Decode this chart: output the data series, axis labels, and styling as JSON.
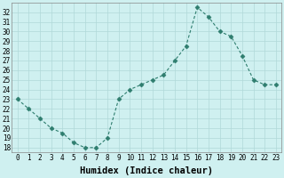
{
  "x": [
    0,
    1,
    2,
    3,
    4,
    5,
    6,
    7,
    8,
    9,
    10,
    11,
    12,
    13,
    14,
    15,
    16,
    17,
    18,
    19,
    20,
    21,
    22,
    23
  ],
  "y": [
    23.0,
    22.0,
    21.0,
    20.0,
    19.5,
    18.5,
    18.0,
    18.0,
    19.0,
    23.0,
    24.0,
    24.5,
    25.0,
    25.5,
    27.0,
    28.5,
    32.5,
    31.5,
    30.0,
    29.5,
    27.5,
    25.0,
    24.5,
    24.5
  ],
  "xlabel": "Humidex (Indice chaleur)",
  "ylim": [
    17.5,
    33.0
  ],
  "xlim": [
    -0.5,
    23.5
  ],
  "line_color": "#2e7d6e",
  "marker": "D",
  "marker_size": 2.5,
  "bg_color": "#cff0f0",
  "grid_color": "#b0d8d8",
  "tick_fontsize": 5.5,
  "xlabel_fontsize": 7.5,
  "yticks": [
    18,
    19,
    20,
    21,
    22,
    23,
    24,
    25,
    26,
    27,
    28,
    29,
    30,
    31,
    32
  ],
  "xticks": [
    0,
    1,
    2,
    3,
    4,
    5,
    6,
    7,
    8,
    9,
    10,
    11,
    12,
    13,
    14,
    15,
    16,
    17,
    18,
    19,
    20,
    21,
    22,
    23
  ]
}
